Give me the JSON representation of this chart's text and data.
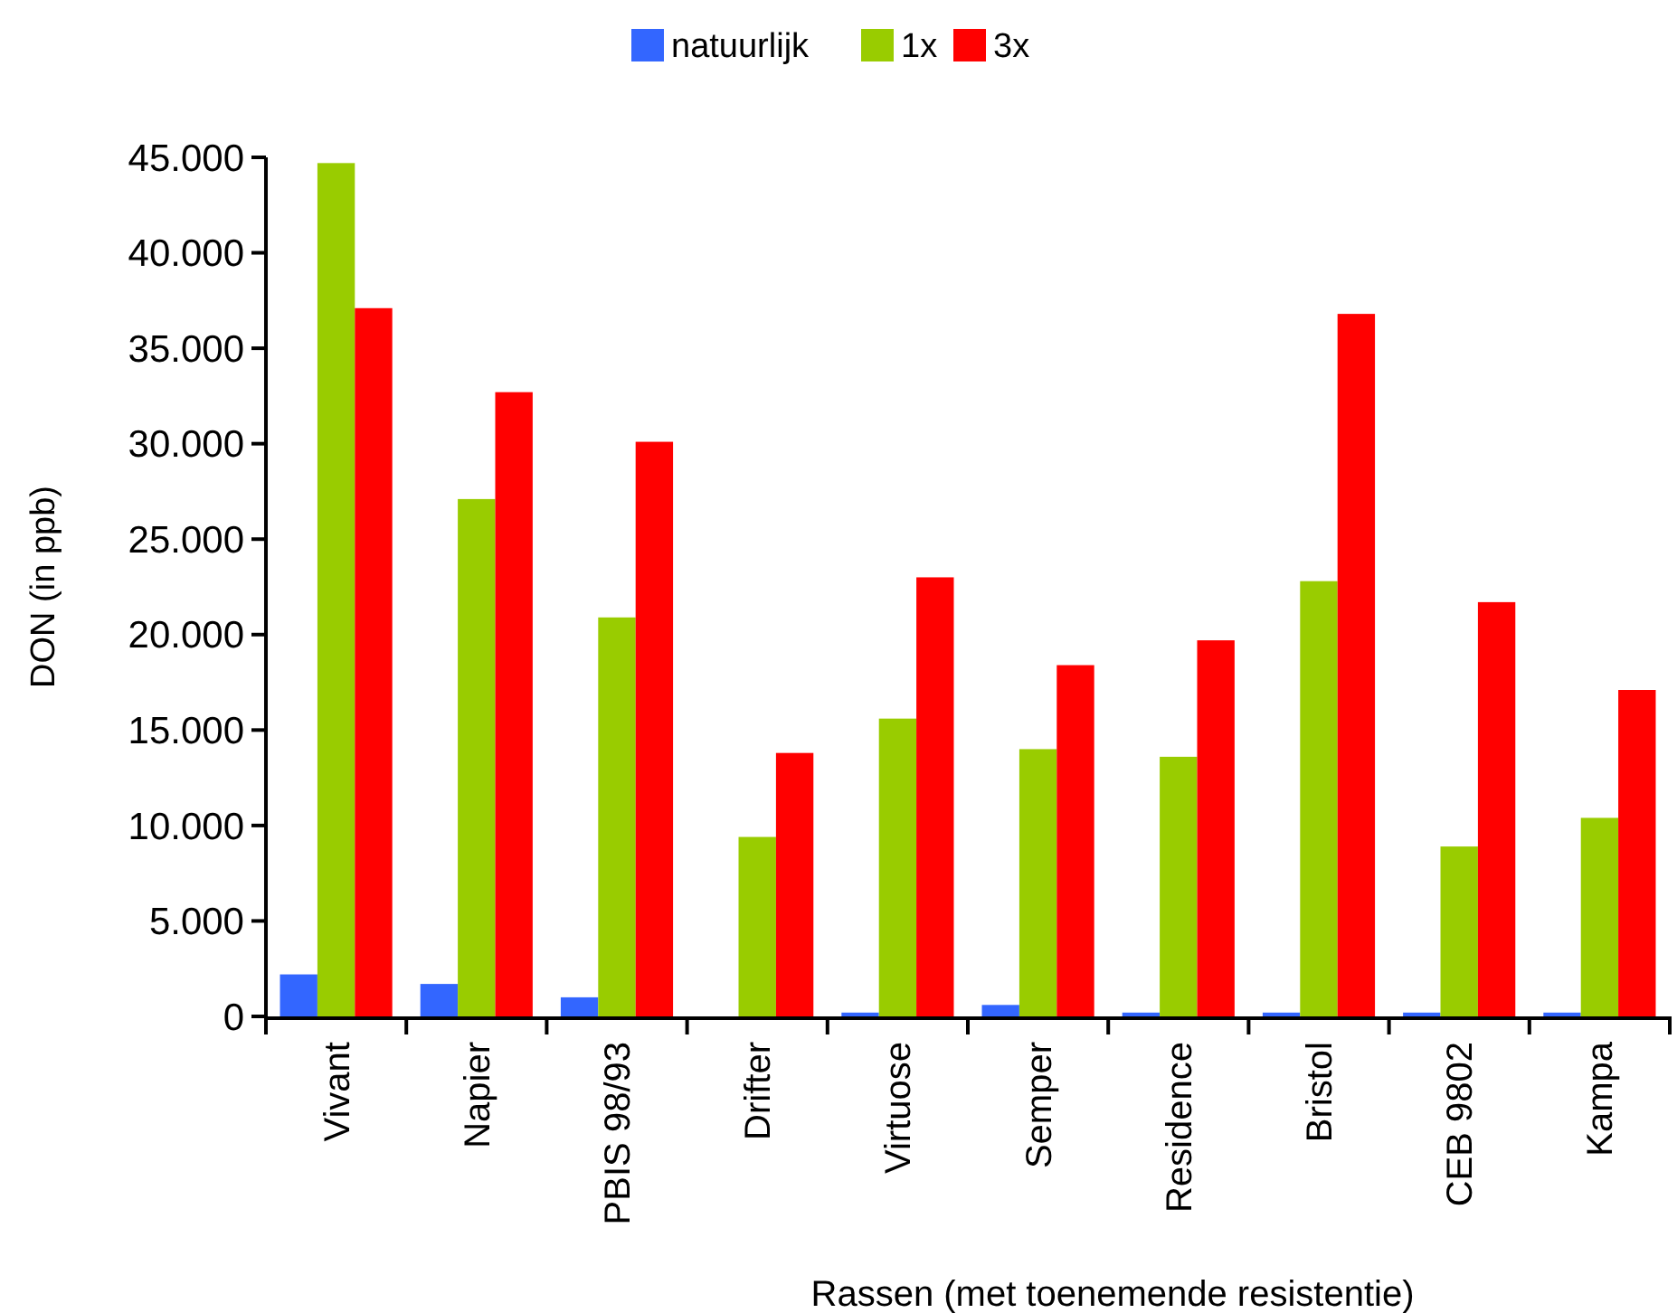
{
  "chart_data": {
    "type": "bar",
    "xlabel": "Rassen (met toenemende resistentie)",
    "ylabel": "DON (in ppb)",
    "categories": [
      "Vivant",
      "Napier",
      "PBIS 98/93",
      "Drifter",
      "Virtuose",
      "Semper",
      "Residence",
      "Bristol",
      "CEB 9802",
      "Kampa"
    ],
    "series": [
      {
        "name": "natuurlijk",
        "color": "#3366ff",
        "values": [
          2200,
          1700,
          1000,
          0,
          200,
          600,
          200,
          200,
          200,
          200
        ]
      },
      {
        "name": "1x",
        "color": "#99cc00",
        "values": [
          44700,
          27100,
          20900,
          9400,
          15600,
          14000,
          13600,
          22800,
          8900,
          10400
        ]
      },
      {
        "name": "3x",
        "color": "#ff0000",
        "values": [
          37100,
          32700,
          30100,
          13800,
          23000,
          18400,
          19700,
          36800,
          21700,
          17100
        ]
      }
    ],
    "ylim": [
      0,
      45000
    ],
    "yticks": [
      {
        "value": 0,
        "label": "0"
      },
      {
        "value": 5000,
        "label": "5.000"
      },
      {
        "value": 10000,
        "label": "10.000"
      },
      {
        "value": 15000,
        "label": "15.000"
      },
      {
        "value": 20000,
        "label": "20.000"
      },
      {
        "value": 25000,
        "label": "25.000"
      },
      {
        "value": 30000,
        "label": "30.000"
      },
      {
        "value": 35000,
        "label": "35.000"
      },
      {
        "value": 40000,
        "label": "40.000"
      },
      {
        "value": 45000,
        "label": "45.000"
      }
    ],
    "grid": false,
    "legend": "top"
  }
}
